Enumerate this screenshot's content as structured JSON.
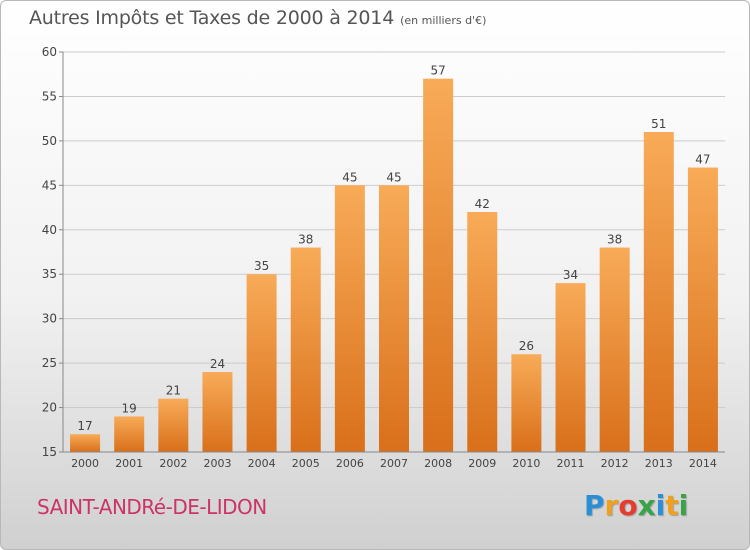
{
  "title": "Autres Impôts et Taxes de 2000 à 2014",
  "unit": "(en milliers d'€)",
  "commune": "SAINT-ANDRé-DE-LIDON",
  "logo": {
    "letters": [
      "P",
      "r",
      "o",
      "x",
      "i",
      "t",
      "i"
    ],
    "colors": [
      "#2a8fd6",
      "#f0a020",
      "#e53c2f",
      "#3aa34a",
      "#2a8fd6",
      "#f0a020",
      "#3aa34a"
    ]
  },
  "colors": {
    "bar_light": "#f8ab58",
    "bar_dark": "#d96f1a",
    "axis": "#888888",
    "grid": "#cccccc",
    "text": "#444444"
  },
  "chart_data": {
    "type": "bar",
    "categories": [
      "2000",
      "2001",
      "2002",
      "2003",
      "2004",
      "2005",
      "2006",
      "2007",
      "2008",
      "2009",
      "2010",
      "2011",
      "2012",
      "2013",
      "2014"
    ],
    "values": [
      17,
      19,
      21,
      24,
      35,
      38,
      45,
      45,
      57,
      42,
      26,
      34,
      38,
      51,
      47
    ],
    "ylim": [
      15,
      60
    ],
    "yticks": [
      15,
      20,
      25,
      30,
      35,
      40,
      45,
      50,
      55,
      60
    ],
    "grid": true,
    "data_labels": true
  }
}
